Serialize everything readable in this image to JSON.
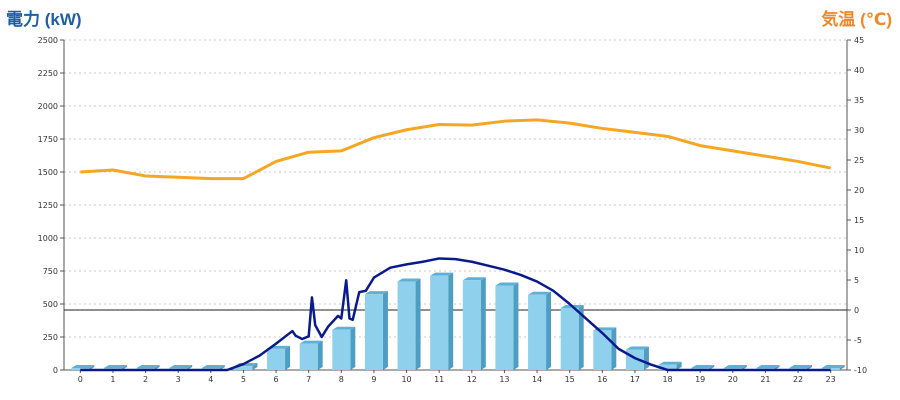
{
  "chart_data": {
    "type": "bar",
    "left_axis_title": "電力 (kW)",
    "right_axis_title": "気温 (℃)",
    "categories": [
      "0",
      "1",
      "2",
      "3",
      "4",
      "5",
      "6",
      "7",
      "8",
      "9",
      "10",
      "11",
      "12",
      "13",
      "14",
      "15",
      "16",
      "17",
      "18",
      "19",
      "20",
      "21",
      "22",
      "23"
    ],
    "y_left": {
      "min": 0,
      "max": 2500,
      "ticks": [
        0,
        250,
        500,
        750,
        1000,
        1250,
        1500,
        1750,
        2000,
        2250,
        2500
      ]
    },
    "y_right": {
      "min": -10,
      "max": 45,
      "ticks": [
        -10,
        -5,
        0,
        5,
        10,
        15,
        20,
        25,
        30,
        35,
        40,
        45
      ]
    },
    "grid": true,
    "series": [
      {
        "kind": "bar",
        "axis": "left",
        "color": "#8fd0ec",
        "values": [
          0,
          0,
          0,
          0,
          0,
          30,
          160,
          200,
          305,
          575,
          670,
          715,
          680,
          640,
          570,
          470,
          300,
          155,
          40,
          0,
          0,
          0,
          0,
          0
        ]
      },
      {
        "kind": "line",
        "axis": "left",
        "color": "#f5a623",
        "x": [
          0,
          1,
          2,
          3,
          4,
          5,
          6,
          7,
          8,
          9,
          10,
          11,
          12,
          13,
          14,
          15,
          16,
          17,
          18,
          19,
          20,
          21,
          22,
          23
        ],
        "values": [
          1500,
          1515,
          1470,
          1460,
          1450,
          1450,
          1580,
          1650,
          1660,
          1760,
          1820,
          1860,
          1855,
          1885,
          1895,
          1870,
          1830,
          1800,
          1770,
          1700,
          1660,
          1620,
          1580,
          1530
        ]
      },
      {
        "kind": "line",
        "axis": "left",
        "color": "#0a1a8c",
        "x": [
          0,
          1,
          2,
          3,
          4,
          4.5,
          5,
          5.5,
          6,
          6.5,
          6.6,
          6.8,
          7,
          7.1,
          7.2,
          7.4,
          7.6,
          7.9,
          8,
          8.15,
          8.25,
          8.35,
          8.55,
          8.75,
          9,
          9.5,
          10,
          10.5,
          11,
          11.5,
          12,
          12.5,
          13,
          13.5,
          14,
          14.5,
          15,
          15.5,
          16,
          16.5,
          17,
          17.5,
          18,
          18.5,
          19,
          20,
          21,
          22,
          23
        ],
        "values": [
          0,
          0,
          0,
          0,
          0,
          0,
          45,
          110,
          200,
          295,
          260,
          235,
          255,
          550,
          340,
          250,
          330,
          410,
          390,
          680,
          390,
          380,
          590,
          600,
          700,
          775,
          800,
          820,
          845,
          840,
          820,
          790,
          760,
          720,
          670,
          600,
          500,
          390,
          280,
          160,
          90,
          40,
          0,
          0,
          0,
          0,
          0,
          0,
          0
        ]
      }
    ]
  }
}
